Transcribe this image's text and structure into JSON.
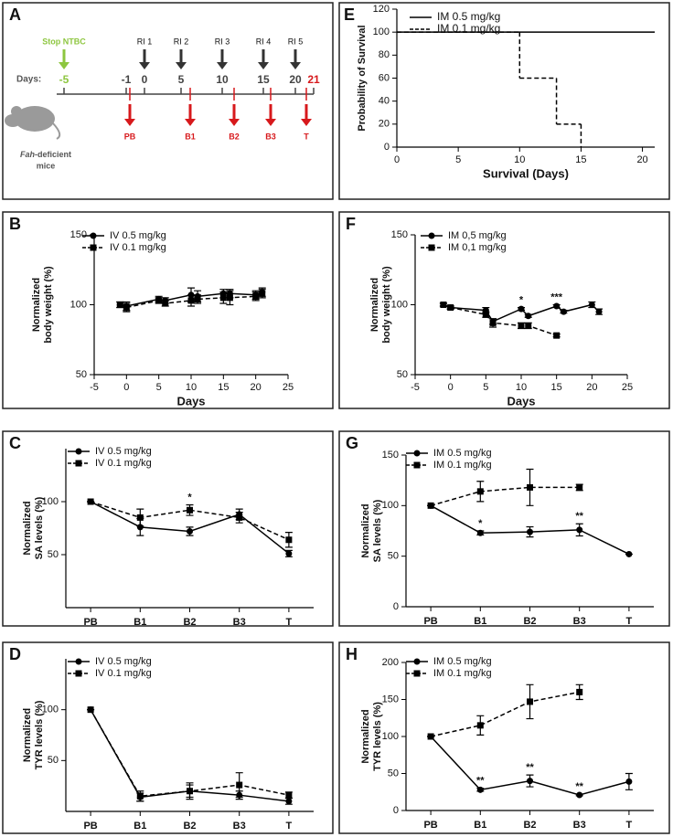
{
  "timeline": {
    "panel": "A",
    "stop": "Stop NTBC",
    "days_label": "Days:",
    "days": [
      -5,
      -1,
      0,
      5,
      10,
      15,
      20,
      21
    ],
    "injections": [
      "RI 1",
      "RI 2",
      "RI 3",
      "RI 4",
      "RI 5"
    ],
    "samples": [
      "PB",
      "B1",
      "B2",
      "B3",
      "T"
    ],
    "subject": {
      "gene": "Fah",
      "rest": "-deficient",
      "line2": "mice"
    }
  },
  "chart_data": [
    {
      "panel": "E",
      "type": "step",
      "xlabel": "Survival (Days)",
      "ylabel": [
        "Probability of Survival"
      ],
      "xlim": [
        0,
        21
      ],
      "xticks": [
        0,
        5,
        10,
        15,
        20
      ],
      "ylim": [
        0,
        120
      ],
      "yticks": [
        0,
        20,
        40,
        60,
        80,
        100,
        120
      ],
      "legend": "upper left",
      "series": [
        {
          "name": "IM 0.5 mg/kg",
          "color": "#000000",
          "dash": false,
          "x": [
            0,
            21
          ],
          "values": [
            100,
            100
          ]
        },
        {
          "name": "IM 0.1 mg/kg",
          "color": "#000000",
          "dash": true,
          "x": [
            0,
            10,
            13,
            15
          ],
          "values": [
            100,
            60,
            20,
            0
          ]
        }
      ]
    },
    {
      "panel": "B",
      "type": "line",
      "xlabel": "Days",
      "ylabel": [
        "Normalized",
        "body weight (%)"
      ],
      "xlim": [
        -5,
        25
      ],
      "xticks": [
        -5,
        0,
        5,
        10,
        15,
        20,
        25
      ],
      "ylim": [
        50,
        150
      ],
      "yticks": [
        50,
        100,
        150
      ],
      "legend": "upper left",
      "series": [
        {
          "name": "IV 0.5 mg/kg",
          "color": "#000000",
          "dash": false,
          "marker": "circle",
          "x": [
            -1,
            0,
            5,
            6,
            10,
            11,
            15,
            16,
            20,
            21
          ],
          "values": [
            100,
            99,
            104,
            103,
            107,
            106,
            108,
            108,
            107,
            109
          ],
          "errors": [
            2,
            3,
            2,
            2,
            5,
            4,
            3,
            3,
            3,
            3
          ]
        },
        {
          "name": "IV 0.1 mg/kg",
          "color": "#000000",
          "dash": true,
          "marker": "square",
          "x": [
            -1,
            0,
            5,
            6,
            10,
            11,
            15,
            16,
            20,
            21
          ],
          "values": [
            100,
            98,
            103,
            101,
            103,
            104,
            105,
            105,
            106,
            108
          ],
          "errors": [
            2,
            3,
            2,
            2,
            4,
            3,
            4,
            5,
            3,
            3
          ]
        }
      ]
    },
    {
      "panel": "F",
      "type": "line",
      "xlabel": "Days",
      "ylabel": [
        "Normalized",
        "body weight (%)"
      ],
      "xlim": [
        -5,
        25
      ],
      "xticks": [
        -5,
        0,
        5,
        10,
        15,
        20,
        25
      ],
      "ylim": [
        50,
        150
      ],
      "yticks": [
        50,
        100,
        150
      ],
      "legend": "upper left",
      "annotations": [
        {
          "text": "*",
          "x": 10
        },
        {
          "text": "***",
          "x": 15
        }
      ],
      "series": [
        {
          "name": "IM 0,5 mg/kg",
          "color": "#000000",
          "dash": false,
          "marker": "circle",
          "x": [
            -1,
            0,
            5,
            6,
            10,
            11,
            15,
            16,
            20,
            21
          ],
          "values": [
            100,
            98,
            96,
            88,
            97,
            92,
            99,
            95,
            100,
            95
          ],
          "errors": [
            1,
            1,
            2,
            2,
            1,
            1,
            1,
            1,
            2,
            2
          ]
        },
        {
          "name": "IM 0,1 mg/kg",
          "color": "#000000",
          "dash": true,
          "marker": "square",
          "x": [
            -1,
            0,
            5,
            6,
            10,
            11,
            15
          ],
          "values": [
            100,
            98,
            93,
            87,
            85,
            85,
            78
          ],
          "errors": [
            1,
            1,
            2,
            3,
            2,
            2,
            1
          ]
        }
      ]
    },
    {
      "panel": "C",
      "type": "line",
      "ylabel": [
        "Normalized",
        "SA levels (%)"
      ],
      "categories": [
        "PB",
        "B1",
        "B2",
        "B3",
        "T"
      ],
      "ylim": [
        0,
        150
      ],
      "yticks": [
        50,
        100
      ],
      "legend": "upper left",
      "annotations": [
        {
          "text": "*",
          "x": "B2"
        }
      ],
      "series": [
        {
          "name": "IV 0.5 mg/kg",
          "color": "#000000",
          "dash": false,
          "marker": "circle",
          "values": [
            100,
            76,
            72,
            88,
            51
          ],
          "errors": [
            0,
            8,
            4,
            5,
            3
          ]
        },
        {
          "name": "IV 0.1 mg/kg",
          "color": "#000000",
          "dash": true,
          "marker": "square",
          "values": [
            100,
            85,
            92,
            85,
            64
          ],
          "errors": [
            0,
            8,
            5,
            5,
            7
          ]
        }
      ]
    },
    {
      "panel": "G",
      "type": "line",
      "ylabel": [
        "Normalized",
        "SA levels (%)"
      ],
      "categories": [
        "PB",
        "B1",
        "B2",
        "B3",
        "T"
      ],
      "ylim": [
        0,
        150
      ],
      "yticks": [
        0,
        50,
        100,
        150
      ],
      "legend": "upper left",
      "annotations": [
        {
          "text": "*",
          "x": "B1"
        },
        {
          "text": "**",
          "x": "B3"
        }
      ],
      "series": [
        {
          "name": "IM 0.5 mg/kg",
          "color": "#000000",
          "dash": false,
          "marker": "circle",
          "values": [
            100,
            73,
            74,
            76,
            52
          ],
          "errors": [
            0,
            2,
            5,
            6,
            0
          ]
        },
        {
          "name": "IM 0.1 mg/kg",
          "color": "#000000",
          "dash": true,
          "marker": "square",
          "values": [
            100,
            114,
            118,
            118,
            null
          ],
          "errors": [
            0,
            10,
            18,
            3,
            null
          ]
        }
      ]
    },
    {
      "panel": "D",
      "type": "line",
      "ylabel": [
        "Normalized",
        "TYR levels (%)"
      ],
      "categories": [
        "PB",
        "B1",
        "B2",
        "B3",
        "T"
      ],
      "ylim": [
        0,
        150
      ],
      "yticks": [
        50,
        100
      ],
      "legend": "upper left",
      "series": [
        {
          "name": "IV 0.5 mg/kg",
          "color": "#000000",
          "dash": false,
          "marker": "circle",
          "values": [
            100,
            14,
            20,
            16,
            10
          ],
          "errors": [
            0,
            4,
            6,
            4,
            3
          ]
        },
        {
          "name": "IV 0.1 mg/kg",
          "color": "#000000",
          "dash": true,
          "marker": "square",
          "values": [
            100,
            15,
            20,
            26,
            16
          ],
          "errors": [
            0,
            5,
            8,
            12,
            3
          ]
        }
      ]
    },
    {
      "panel": "H",
      "type": "line",
      "ylabel": [
        "Normalized",
        "TYR levels (%)"
      ],
      "categories": [
        "PB",
        "B1",
        "B2",
        "B3",
        "T"
      ],
      "ylim": [
        0,
        200
      ],
      "yticks": [
        0,
        50,
        100,
        150,
        200
      ],
      "legend": "upper left",
      "annotations": [
        {
          "text": "**",
          "x": "B1"
        },
        {
          "text": "**",
          "x": "B2"
        },
        {
          "text": "**",
          "x": "B3"
        }
      ],
      "series": [
        {
          "name": "IM 0.5 mg/kg",
          "color": "#000000",
          "dash": false,
          "marker": "circle",
          "values": [
            100,
            28,
            40,
            21,
            39
          ],
          "errors": [
            0,
            2,
            8,
            1,
            11
          ]
        },
        {
          "name": "IM 0.1 mg/kg",
          "color": "#000000",
          "dash": true,
          "marker": "square",
          "values": [
            100,
            115,
            147,
            160,
            null
          ],
          "errors": [
            0,
            13,
            23,
            10,
            null
          ]
        }
      ]
    }
  ]
}
